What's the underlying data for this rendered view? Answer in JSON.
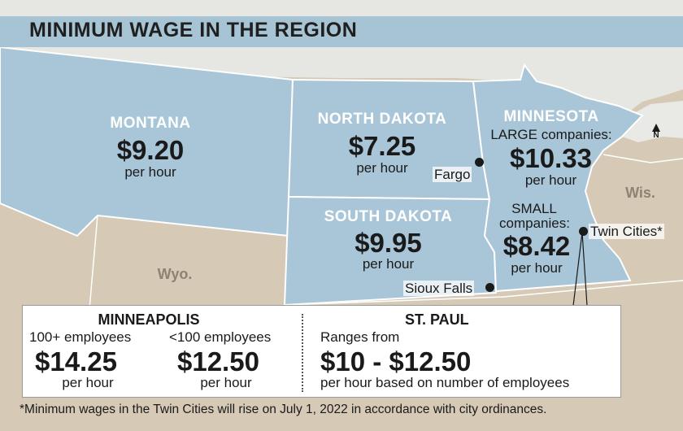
{
  "title": "MINIMUM WAGE IN THE REGION",
  "colors": {
    "states": "#a9c6d8",
    "land": "#d6c9b6",
    "lakes": "#e9e9e6",
    "border": "#ffffff"
  },
  "compass": "N",
  "states": {
    "montana": {
      "name": "MONTANA",
      "wage": "$9.20",
      "unit": "per hour"
    },
    "north_dakota": {
      "name": "NORTH DAKOTA",
      "wage": "$7.25",
      "unit": "per hour"
    },
    "south_dakota": {
      "name": "SOUTH DAKOTA",
      "wage": "$9.95",
      "unit": "per hour"
    },
    "minnesota": {
      "name": "MINNESOTA",
      "large_label": "LARGE companies:",
      "large_wage": "$10.33",
      "large_unit": "per hour",
      "small_label_1": "SMALL",
      "small_label_2": "companies:",
      "small_wage": "$8.42",
      "small_unit": "per hour"
    }
  },
  "neighbors": {
    "wyoming": "Wyo.",
    "wisconsin": "Wis."
  },
  "cities": {
    "fargo": "Fargo",
    "sioux_falls": "Sioux Falls",
    "twin_cities": "Twin Cities*"
  },
  "panel": {
    "minneapolis": {
      "title": "MINNEAPOLIS",
      "large_label": "100+ employees",
      "large_wage": "$14.25",
      "large_unit": "per hour",
      "small_label": "<100 employees",
      "small_wage": "$12.50",
      "small_unit": "per hour"
    },
    "st_paul": {
      "title": "ST. PAUL",
      "range_label": "Ranges from",
      "range": "$10 - $12.50",
      "note": "per hour based on number of employees"
    }
  },
  "footnote": "*Minimum wages in the Twin Cities will rise on July 1, 2022 in accordance with city ordinances."
}
